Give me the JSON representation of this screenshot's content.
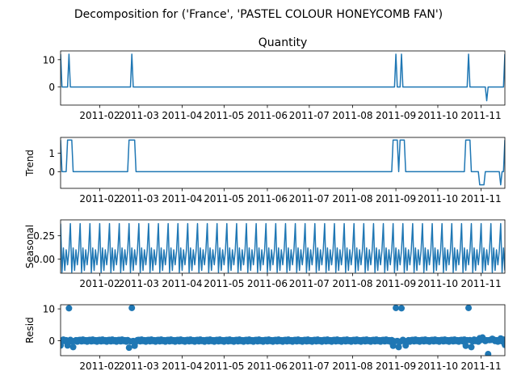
{
  "figure": {
    "suptitle": "Decomposition for ('France', 'PASTEL COLOUR HONEYCOMB FAN')"
  },
  "colors": {
    "series": "#1f77b4",
    "axis": "#000000",
    "background": "#ffffff"
  },
  "chart_data": [
    {
      "type": "line",
      "title": "Quantity",
      "ylabel": "",
      "x_range": [
        "2011-01-04",
        "2011-11-18"
      ],
      "ylim": [
        -6.6,
        13.2
      ],
      "yticks": [
        0,
        10
      ],
      "x_tick_dates": [
        "2011-02-01",
        "2011-03-01",
        "2011-04-01",
        "2011-05-01",
        "2011-06-01",
        "2011-07-01",
        "2011-08-01",
        "2011-09-01",
        "2011-10-01",
        "2011-11-01"
      ],
      "x_tick_labels": [
        "2011-02",
        "2011-03",
        "2011-04",
        "2011-05",
        "2011-06",
        "2011-07",
        "2011-08",
        "2011-09",
        "2011-10",
        "2011-11"
      ],
      "baseline": 0,
      "events": [
        {
          "x": "2011-01-04",
          "y": 12
        },
        {
          "x": "2011-01-10",
          "y": 12
        },
        {
          "x": "2011-02-24",
          "y": 12
        },
        {
          "x": "2011-09-01",
          "y": 12
        },
        {
          "x": "2011-09-05",
          "y": 12
        },
        {
          "x": "2011-10-23",
          "y": 12
        },
        {
          "x": "2011-11-05",
          "y": -5
        },
        {
          "x": "2011-11-18",
          "y": 12
        }
      ]
    },
    {
      "type": "line",
      "title": "",
      "ylabel": "Trend",
      "x_range": [
        "2011-01-04",
        "2011-11-18"
      ],
      "ylim": [
        -0.9,
        1.85
      ],
      "yticks": [
        0,
        1
      ],
      "x_tick_dates": [
        "2011-02-01",
        "2011-03-01",
        "2011-04-01",
        "2011-05-01",
        "2011-06-01",
        "2011-07-01",
        "2011-08-01",
        "2011-09-01",
        "2011-10-01",
        "2011-11-01"
      ],
      "x_tick_labels": [
        "2011-02",
        "2011-03",
        "2011-04",
        "2011-05",
        "2011-06",
        "2011-07",
        "2011-08",
        "2011-09",
        "2011-10",
        "2011-11"
      ],
      "points": [
        [
          "2011-01-04",
          1.71
        ],
        [
          "2011-01-05",
          0
        ],
        [
          "2011-01-08",
          0
        ],
        [
          "2011-01-09",
          1.71
        ],
        [
          "2011-01-12",
          1.71
        ],
        [
          "2011-01-13",
          0
        ],
        [
          "2011-02-21",
          0
        ],
        [
          "2011-02-22",
          1.71
        ],
        [
          "2011-02-26",
          1.71
        ],
        [
          "2011-02-27",
          0
        ],
        [
          "2011-08-29",
          0
        ],
        [
          "2011-08-30",
          1.71
        ],
        [
          "2011-09-02",
          1.71
        ],
        [
          "2011-09-03",
          0
        ],
        [
          "2011-09-04",
          1.71
        ],
        [
          "2011-09-07",
          1.71
        ],
        [
          "2011-09-08",
          0
        ],
        [
          "2011-10-20",
          0
        ],
        [
          "2011-10-21",
          1.71
        ],
        [
          "2011-10-24",
          1.71
        ],
        [
          "2011-10-25",
          0
        ],
        [
          "2011-10-30",
          0
        ],
        [
          "2011-10-31",
          -0.71
        ],
        [
          "2011-11-03",
          -0.71
        ],
        [
          "2011-11-04",
          0
        ],
        [
          "2011-11-14",
          0
        ],
        [
          "2011-11-15",
          -0.71
        ],
        [
          "2011-11-16",
          0
        ],
        [
          "2011-11-17",
          0
        ],
        [
          "2011-11-18",
          1.71
        ]
      ]
    },
    {
      "type": "line",
      "title": "",
      "ylabel": "Seasonal",
      "x_range": [
        "2011-01-04",
        "2011-11-18"
      ],
      "ylim": [
        -0.15,
        0.42
      ],
      "yticks": [
        0.0,
        0.25
      ],
      "ytick_labels": [
        "0.00",
        "0.25"
      ],
      "x_tick_dates": [
        "2011-02-01",
        "2011-03-01",
        "2011-04-01",
        "2011-05-01",
        "2011-06-01",
        "2011-07-01",
        "2011-08-01",
        "2011-09-01",
        "2011-10-01",
        "2011-11-01"
      ],
      "x_tick_labels": [
        "2011-02",
        "2011-03",
        "2011-04",
        "2011-05",
        "2011-06",
        "2011-07",
        "2011-08",
        "2011-09",
        "2011-10",
        "2011-11"
      ],
      "period": 7,
      "pattern": [
        0.38,
        -0.14,
        0.12,
        -0.12,
        0.1,
        -0.06,
        0.09
      ]
    },
    {
      "type": "scatter",
      "title": "",
      "ylabel": "Resid",
      "x_range": [
        "2011-01-04",
        "2011-11-18"
      ],
      "ylim": [
        -4.7,
        11.3
      ],
      "yticks": [
        0,
        10
      ],
      "x_tick_dates": [
        "2011-02-01",
        "2011-03-01",
        "2011-04-01",
        "2011-05-01",
        "2011-06-01",
        "2011-07-01",
        "2011-08-01",
        "2011-09-01",
        "2011-10-01",
        "2011-11-01"
      ],
      "x_tick_labels": [
        "2011-02",
        "2011-03",
        "2011-04",
        "2011-05",
        "2011-06",
        "2011-07",
        "2011-08",
        "2011-09",
        "2011-10",
        "2011-11"
      ],
      "baseline": 0,
      "outliers": [
        {
          "x": "2011-01-10",
          "y": 10.2
        },
        {
          "x": "2011-02-24",
          "y": 10.3
        },
        {
          "x": "2011-09-01",
          "y": 10.3
        },
        {
          "x": "2011-09-05",
          "y": 10.2
        },
        {
          "x": "2011-10-23",
          "y": 10.3
        },
        {
          "x": "2011-11-06",
          "y": -4.2
        },
        {
          "x": "2011-01-04",
          "y": -1.5
        },
        {
          "x": "2011-01-09",
          "y": -1.5
        },
        {
          "x": "2011-01-13",
          "y": -2.0
        },
        {
          "x": "2011-02-22",
          "y": -2.2
        },
        {
          "x": "2011-02-26",
          "y": -1.6
        },
        {
          "x": "2011-08-30",
          "y": -1.6
        },
        {
          "x": "2011-09-03",
          "y": -2.0
        },
        {
          "x": "2011-09-08",
          "y": -1.5
        },
        {
          "x": "2011-10-21",
          "y": -1.6
        },
        {
          "x": "2011-10-25",
          "y": -2.0
        },
        {
          "x": "2011-10-31",
          "y": 0.8
        },
        {
          "x": "2011-11-02",
          "y": 1.0
        },
        {
          "x": "2011-11-09",
          "y": 0.6
        },
        {
          "x": "2011-11-15",
          "y": 0.7
        },
        {
          "x": "2011-11-18",
          "y": -1.3
        }
      ]
    }
  ]
}
